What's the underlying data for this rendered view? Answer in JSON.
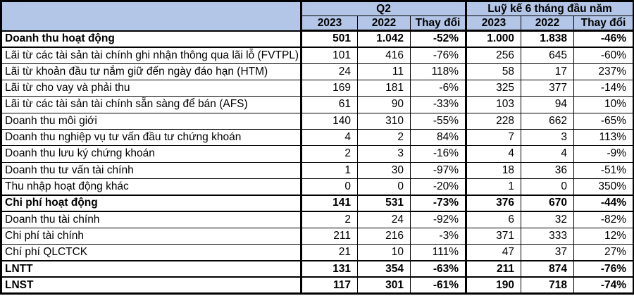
{
  "colors": {
    "header_bg": "#b4c6e7",
    "border": "#000000",
    "text": "#000000"
  },
  "table": {
    "groups": [
      {
        "label": "Q2"
      },
      {
        "label": "Luỹ kế 6 tháng đầu năm"
      }
    ],
    "sub_headers": [
      "2023",
      "2022",
      "Thay đổi",
      "2023",
      "2022",
      "Thay đổi"
    ],
    "rows": [
      {
        "label": "Doanh thu hoạt động",
        "bold": true,
        "values": [
          "501",
          "1.042",
          "-52%",
          "1.000",
          "1.838",
          "-46%"
        ]
      },
      {
        "label": "Lãi từ các tài sản tài chính ghi nhận thông qua lãi lỗ (FVTPL)",
        "bold": false,
        "values": [
          "101",
          "416",
          "-76%",
          "256",
          "645",
          "-60%"
        ]
      },
      {
        "label": "Lãi từ khoản đầu tư nắm giữ đến ngày đáo hạn (HTM)",
        "bold": false,
        "values": [
          "24",
          "11",
          "118%",
          "58",
          "17",
          "237%"
        ]
      },
      {
        "label": "Lãi từ cho vay và phải thu",
        "bold": false,
        "values": [
          "169",
          "181",
          "-6%",
          "325",
          "377",
          "-14%"
        ]
      },
      {
        "label": "Lãi từ các tài sản tài chính sẵn sàng để bán (AFS)",
        "bold": false,
        "values": [
          "61",
          "90",
          "-33%",
          "103",
          "94",
          "10%"
        ]
      },
      {
        "label": "Doanh thu môi giới",
        "bold": false,
        "values": [
          "140",
          "310",
          "-55%",
          "228",
          "662",
          "-65%"
        ]
      },
      {
        "label": "Doanh thu nghiệp vụ tư vấn đầu tư chứng khoán",
        "bold": false,
        "values": [
          "4",
          "2",
          "84%",
          "7",
          "3",
          "113%"
        ]
      },
      {
        "label": "Doanh thu lưu ký chứng khoán",
        "bold": false,
        "values": [
          "2",
          "3",
          "-16%",
          "4",
          "4",
          "-9%"
        ]
      },
      {
        "label": "Doanh thu tư vấn tài chính",
        "bold": false,
        "values": [
          "1",
          "30",
          "-97%",
          "18",
          "36",
          "-51%"
        ]
      },
      {
        "label": "Thu nhập hoạt động khác",
        "bold": false,
        "values": [
          "0",
          "0",
          "-20%",
          "1",
          "0",
          "350%"
        ]
      },
      {
        "label": "Chi phí hoạt động",
        "bold": true,
        "values": [
          "141",
          "531",
          "-73%",
          "376",
          "670",
          "-44%"
        ]
      },
      {
        "label": "Doanh thu tài chính",
        "bold": false,
        "values": [
          "2",
          "24",
          "-92%",
          "6",
          "32",
          "-82%"
        ]
      },
      {
        "label": "Chi phí tài chính",
        "bold": false,
        "values": [
          "211",
          "216",
          "-3%",
          "371",
          "333",
          "12%"
        ]
      },
      {
        "label": "Chí phí QLCTCK",
        "bold": false,
        "values": [
          "21",
          "10",
          "111%",
          "47",
          "37",
          "27%"
        ]
      },
      {
        "label": "LNTT",
        "bold": true,
        "values": [
          "131",
          "354",
          "-63%",
          "211",
          "874",
          "-76%"
        ]
      },
      {
        "label": "LNST",
        "bold": true,
        "values": [
          "117",
          "301",
          "-61%",
          "190",
          "718",
          "-74%"
        ]
      }
    ]
  }
}
